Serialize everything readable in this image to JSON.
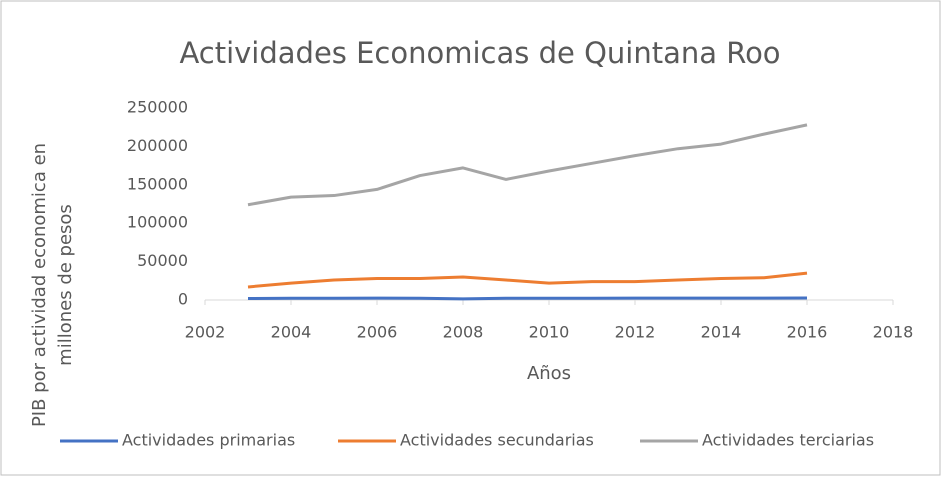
{
  "chart_data": {
    "type": "line",
    "title": "Actividades Economicas de Quintana Roo",
    "xlabel": "Años",
    "ylabel": [
      "PIB por actividad economica en",
      "millones de pesos"
    ],
    "x": [
      2003,
      2004,
      2005,
      2006,
      2007,
      2008,
      2009,
      2010,
      2011,
      2012,
      2013,
      2014,
      2015,
      2016
    ],
    "series": [
      {
        "name": "Actividades primarias",
        "color": "#4472c4",
        "values": [
          2000,
          2200,
          2300,
          2400,
          2300,
          1500,
          2200,
          2300,
          2300,
          2400,
          2400,
          2500,
          2500,
          2600
        ]
      },
      {
        "name": "Actividades secundarias",
        "color": "#ed7d31",
        "values": [
          17000,
          22000,
          26000,
          28000,
          28000,
          30000,
          26000,
          22000,
          24000,
          24000,
          26000,
          28000,
          29000,
          35000
        ]
      },
      {
        "name": "Actividades terciarias",
        "color": "#a5a5a5",
        "values": [
          124000,
          134000,
          136000,
          144000,
          162000,
          172000,
          157000,
          168000,
          178000,
          188000,
          197000,
          203000,
          216000,
          228000
        ]
      }
    ],
    "xlim": [
      2002,
      2018
    ],
    "xticks": [
      2002,
      2004,
      2006,
      2008,
      2010,
      2012,
      2014,
      2016,
      2018
    ],
    "ylim": [
      0,
      250000
    ],
    "yticks": [
      0,
      50000,
      100000,
      150000,
      200000,
      250000
    ],
    "grid": false,
    "legend": "bottom"
  }
}
